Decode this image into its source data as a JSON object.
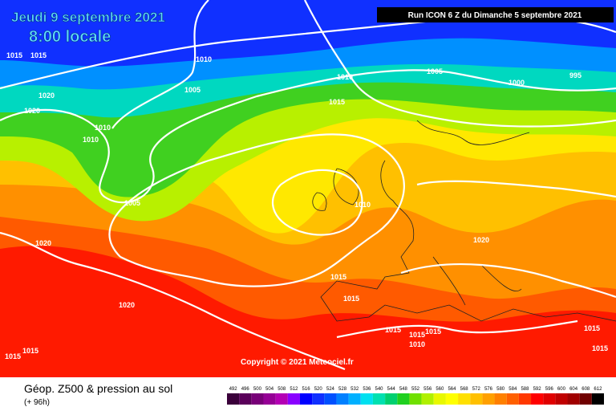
{
  "header": {
    "date": "Jeudi 9 septembre 2021",
    "time": "8:00 locale",
    "run": "Run ICON 6 Z du Dimanche 5 septembre 2021"
  },
  "copyright": "Copyright © 2021 Meteociel.fr",
  "footer": {
    "title": "Géop. Z500 & pression au sol",
    "lead": "(+ 96h)"
  },
  "isobar_labels": [
    1015,
    1015,
    1010,
    1005,
    1010,
    1005,
    1000,
    995,
    1015,
    1020,
    1020,
    1010,
    1010,
    1005,
    1010,
    1020,
    1020,
    1015,
    1015,
    1020,
    1015,
    1015,
    1015,
    1010,
    1015,
    1015,
    1015,
    1015
  ],
  "legend": {
    "levels": [
      492,
      496,
      500,
      504,
      508,
      512,
      516,
      520,
      524,
      528,
      532,
      536,
      540,
      544,
      548,
      552,
      556,
      560,
      564,
      568,
      572,
      576,
      580,
      584,
      588,
      592,
      596,
      600,
      604,
      608,
      612
    ],
    "colors": [
      "#3a003a",
      "#5a005a",
      "#780078",
      "#960096",
      "#b400b4",
      "#8a00ff",
      "#0000ff",
      "#1030ff",
      "#0050ff",
      "#0080ff",
      "#00b0ff",
      "#00e0f0",
      "#00e0b0",
      "#00d070",
      "#20d020",
      "#70e000",
      "#b0f000",
      "#e8f800",
      "#ffff00",
      "#ffe000",
      "#ffc000",
      "#ffa000",
      "#ff8000",
      "#ff6000",
      "#ff3800",
      "#ff0000",
      "#e00000",
      "#c00000",
      "#a00000",
      "#700000",
      "#000000"
    ]
  }
}
